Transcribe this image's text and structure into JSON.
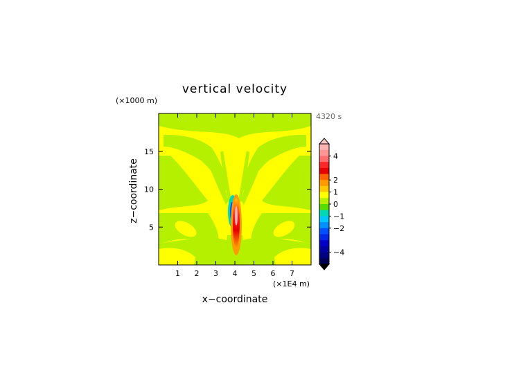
{
  "chart_data": {
    "type": "heatmap",
    "title": "vertical velocity",
    "time_label": "4320 s",
    "xlabel": "x−coordinate",
    "ylabel": "z−coordinate",
    "x_unit": "(×1E4 m)",
    "y_unit": "(×1000 m)",
    "xlim": [
      0,
      8
    ],
    "ylim": [
      0,
      20
    ],
    "x_ticks": [
      1,
      2,
      3,
      4,
      5,
      6,
      7
    ],
    "y_ticks": [
      5,
      10,
      15
    ],
    "colorbar": {
      "ticks": [
        "4",
        "2",
        "1",
        "0",
        "−1",
        "−2",
        "−4"
      ],
      "tick_values": [
        4,
        2,
        1,
        0,
        -1,
        -2,
        -4
      ],
      "range": [
        -5,
        5
      ],
      "colors": {
        "above": "#ffc8c8",
        "bands_top_to_bottom": [
          "#ffb4b4",
          "#ff9696",
          "#ff6e6e",
          "#ff2828",
          "#e60000",
          "#ff6400",
          "#ff9b00",
          "#ffc800",
          "#ffff00",
          "#b4f000",
          "#5adc00",
          "#00d7b4",
          "#00c8ff",
          "#0091ff",
          "#0050ff",
          "#0028e6",
          "#0000c8",
          "#0000a0",
          "#000082",
          "#000050"
        ],
        "below": "#000000"
      }
    },
    "regions": {
      "background_value_range": "0 to 0.5",
      "background_color": "#ffff00",
      "band_value_range": "0 to -0.5",
      "band_color": "#b4f000",
      "updraft": {
        "x": 4.0,
        "z_range": [
          2.5,
          8.5
        ],
        "max": 4
      },
      "downdraft": {
        "x": 3.9,
        "z_range": [
          5.0,
          8.0
        ],
        "min": -2
      }
    }
  }
}
